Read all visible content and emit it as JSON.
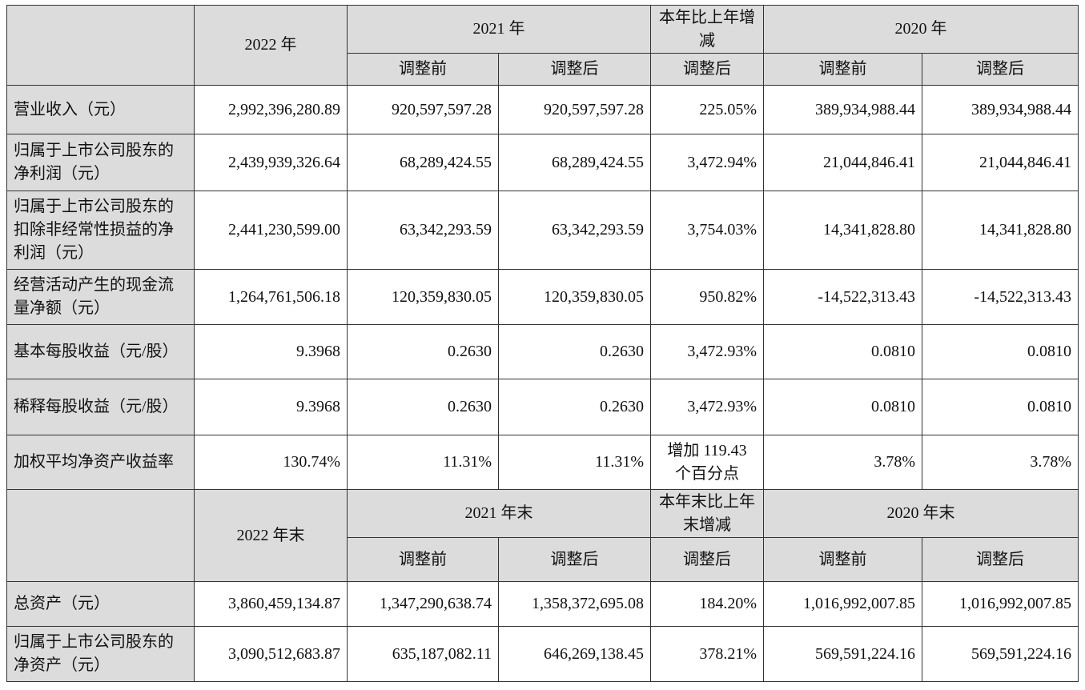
{
  "header1": {
    "col_2022": "2022 年",
    "col_2021": "2021 年",
    "col_change": "本年比上年增减",
    "col_2020": "2020 年",
    "sub_before": "调整前",
    "sub_after": "调整后"
  },
  "rows1": [
    {
      "label": "营业收入（元）",
      "v2022": "2,992,396,280.89",
      "v2021_before": "920,597,597.28",
      "v2021_after": "920,597,597.28",
      "change": "225.05%",
      "v2020_before": "389,934,988.44",
      "v2020_after": "389,934,988.44"
    },
    {
      "label": "归属于上市公司股东的净利润（元）",
      "v2022": "2,439,939,326.64",
      "v2021_before": "68,289,424.55",
      "v2021_after": "68,289,424.55",
      "change": "3,472.94%",
      "v2020_before": "21,044,846.41",
      "v2020_after": "21,044,846.41"
    },
    {
      "label": "归属于上市公司股东的扣除非经常性损益的净利润（元）",
      "v2022": "2,441,230,599.00",
      "v2021_before": "63,342,293.59",
      "v2021_after": "63,342,293.59",
      "change": "3,754.03%",
      "v2020_before": "14,341,828.80",
      "v2020_after": "14,341,828.80"
    },
    {
      "label": "经营活动产生的现金流量净额（元）",
      "v2022": "1,264,761,506.18",
      "v2021_before": "120,359,830.05",
      "v2021_after": "120,359,830.05",
      "change": "950.82%",
      "v2020_before": "-14,522,313.43",
      "v2020_after": "-14,522,313.43"
    },
    {
      "label": "基本每股收益（元/股）",
      "v2022": "9.3968",
      "v2021_before": "0.2630",
      "v2021_after": "0.2630",
      "change": "3,472.93%",
      "v2020_before": "0.0810",
      "v2020_after": "0.0810"
    },
    {
      "label": "稀释每股收益（元/股）",
      "v2022": "9.3968",
      "v2021_before": "0.2630",
      "v2021_after": "0.2630",
      "change": "3,472.93%",
      "v2020_before": "0.0810",
      "v2020_after": "0.0810"
    },
    {
      "label": "加权平均净资产收益率",
      "v2022": "130.74%",
      "v2021_before": "11.31%",
      "v2021_after": "11.31%",
      "change": "增加 119.43 个百分点",
      "v2020_before": "3.78%",
      "v2020_after": "3.78%"
    }
  ],
  "header2": {
    "col_2022": "2022 年末",
    "col_2021": "2021 年末",
    "col_change": "本年末比上年末增减",
    "col_2020": "2020 年末",
    "sub_before": "调整前",
    "sub_after": "调整后"
  },
  "rows2": [
    {
      "label": "总资产（元）",
      "v2022": "3,860,459,134.87",
      "v2021_before": "1,347,290,638.74",
      "v2021_after": "1,358,372,695.08",
      "change": "184.20%",
      "v2020_before": "1,016,992,007.85",
      "v2020_after": "1,016,992,007.85"
    },
    {
      "label": "归属于上市公司股东的净资产（元）",
      "v2022": "3,090,512,683.87",
      "v2021_before": "635,187,082.11",
      "v2021_after": "646,269,138.45",
      "change": "378.21%",
      "v2020_before": "569,591,224.16",
      "v2020_after": "569,591,224.16"
    }
  ]
}
